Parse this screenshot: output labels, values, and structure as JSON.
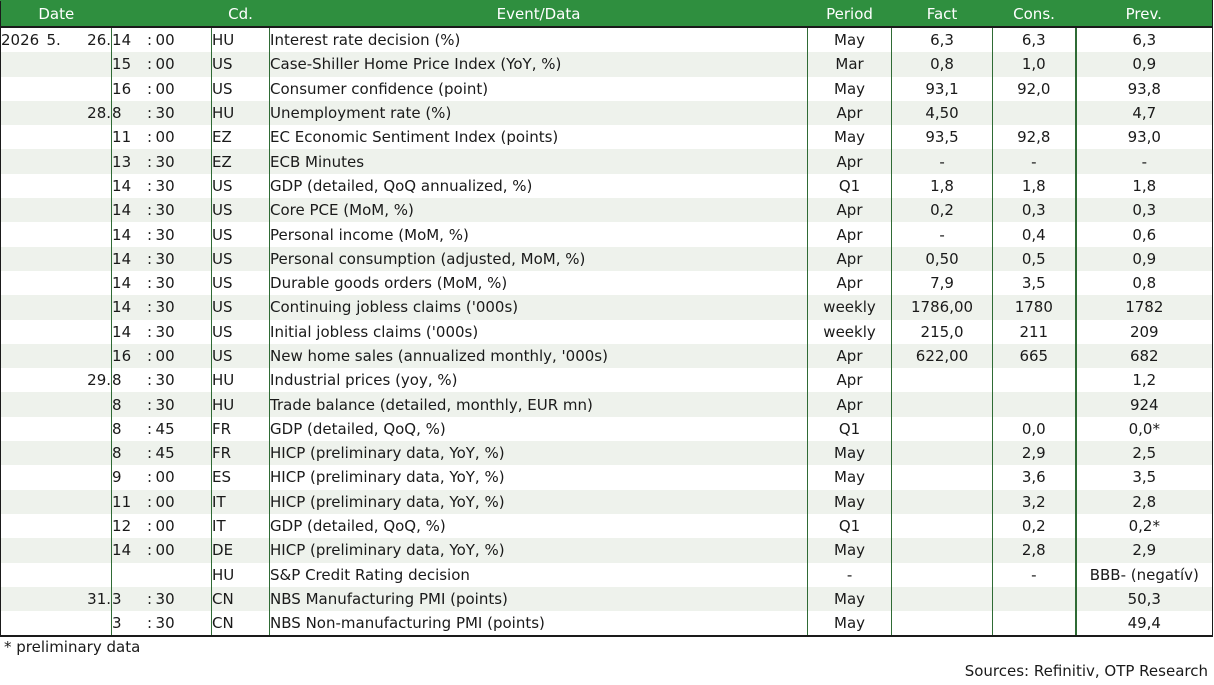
{
  "columns": {
    "date": "Date",
    "code": "Cd.",
    "event": "Event/Data",
    "period": "Period",
    "fact": "Fact",
    "cons": "Cons.",
    "prev": "Prev."
  },
  "rows": [
    {
      "year": "2026",
      "month": "5.",
      "day": "26.",
      "hh": "14",
      "mm": "00",
      "code": "HU",
      "event": "Interest rate decision (%)",
      "period": "May",
      "fact": "6,3",
      "cons": "6,3",
      "prev": "6,3"
    },
    {
      "year": "",
      "month": "",
      "day": "",
      "hh": "15",
      "mm": "00",
      "code": "US",
      "event": "Case-Shiller Home Price Index (YoY, %)",
      "period": "Mar",
      "fact": "0,8",
      "cons": "1,0",
      "prev": "0,9"
    },
    {
      "year": "",
      "month": "",
      "day": "",
      "hh": "16",
      "mm": "00",
      "code": "US",
      "event": "Consumer confidence (point)",
      "period": "May",
      "fact": "93,1",
      "cons": "92,0",
      "prev": "93,8"
    },
    {
      "year": "",
      "month": "",
      "day": "28.",
      "hh": "8",
      "mm": "30",
      "code": "HU",
      "event": "Unemployment rate (%)",
      "period": "Apr",
      "fact": "4,50",
      "cons": "",
      "prev": "4,7"
    },
    {
      "year": "",
      "month": "",
      "day": "",
      "hh": "11",
      "mm": "00",
      "code": "EZ",
      "event": "EC Economic Sentiment Index (points)",
      "period": "May",
      "fact": "93,5",
      "cons": "92,8",
      "prev": "93,0"
    },
    {
      "year": "",
      "month": "",
      "day": "",
      "hh": "13",
      "mm": "30",
      "code": "EZ",
      "event": "ECB Minutes",
      "period": "Apr",
      "fact": "-",
      "cons": "-",
      "prev": "-"
    },
    {
      "year": "",
      "month": "",
      "day": "",
      "hh": "14",
      "mm": "30",
      "code": "US",
      "event": "GDP (detailed, QoQ annualized, %)",
      "period": "Q1",
      "fact": "1,8",
      "cons": "1,8",
      "prev": "1,8"
    },
    {
      "year": "",
      "month": "",
      "day": "",
      "hh": "14",
      "mm": "30",
      "code": "US",
      "event": "Core PCE (MoM, %)",
      "period": "Apr",
      "fact": "0,2",
      "cons": "0,3",
      "prev": "0,3"
    },
    {
      "year": "",
      "month": "",
      "day": "",
      "hh": "14",
      "mm": "30",
      "code": "US",
      "event": "Personal income (MoM, %)",
      "period": "Apr",
      "fact": "-",
      "cons": "0,4",
      "prev": "0,6"
    },
    {
      "year": "",
      "month": "",
      "day": "",
      "hh": "14",
      "mm": "30",
      "code": "US",
      "event": "Personal consumption (adjusted, MoM, %)",
      "period": "Apr",
      "fact": "0,50",
      "cons": "0,5",
      "prev": "0,9"
    },
    {
      "year": "",
      "month": "",
      "day": "",
      "hh": "14",
      "mm": "30",
      "code": "US",
      "event": "Durable goods orders (MoM, %)",
      "period": "Apr",
      "fact": "7,9",
      "cons": "3,5",
      "prev": "0,8"
    },
    {
      "year": "",
      "month": "",
      "day": "",
      "hh": "14",
      "mm": "30",
      "code": "US",
      "event": "Continuing jobless claims ('000s)",
      "period": "weekly",
      "fact": "1786,00",
      "cons": "1780",
      "prev": "1782"
    },
    {
      "year": "",
      "month": "",
      "day": "",
      "hh": "14",
      "mm": "30",
      "code": "US",
      "event": "Initial jobless claims ('000s)",
      "period": "weekly",
      "fact": "215,0",
      "cons": "211",
      "prev": "209"
    },
    {
      "year": "",
      "month": "",
      "day": "",
      "hh": "16",
      "mm": "00",
      "code": "US",
      "event": "New home sales (annualized monthly, '000s)",
      "period": "Apr",
      "fact": "622,00",
      "cons": "665",
      "prev": "682"
    },
    {
      "year": "",
      "month": "",
      "day": "29.",
      "hh": "8",
      "mm": "30",
      "code": "HU",
      "event": "Industrial prices (yoy, %)",
      "period": "Apr",
      "fact": "",
      "cons": "",
      "prev": "1,2"
    },
    {
      "year": "",
      "month": "",
      "day": "",
      "hh": "8",
      "mm": "30",
      "code": "HU",
      "event": "Trade balance (detailed, monthly, EUR mn)",
      "period": "Apr",
      "fact": "",
      "cons": "",
      "prev": "924"
    },
    {
      "year": "",
      "month": "",
      "day": "",
      "hh": "8",
      "mm": "45",
      "code": "FR",
      "event": "GDP (detailed, QoQ, %)",
      "period": "Q1",
      "fact": "",
      "cons": "0,0",
      "prev": "0,0*"
    },
    {
      "year": "",
      "month": "",
      "day": "",
      "hh": "8",
      "mm": "45",
      "code": "FR",
      "event": "HICP (preliminary data, YoY, %)",
      "period": "May",
      "fact": "",
      "cons": "2,9",
      "prev": "2,5"
    },
    {
      "year": "",
      "month": "",
      "day": "",
      "hh": "9",
      "mm": "00",
      "code": "ES",
      "event": "HICP (preliminary data, YoY, %)",
      "period": "May",
      "fact": "",
      "cons": "3,6",
      "prev": "3,5"
    },
    {
      "year": "",
      "month": "",
      "day": "",
      "hh": "11",
      "mm": "00",
      "code": "IT",
      "event": "HICP (preliminary data, YoY, %)",
      "period": "May",
      "fact": "",
      "cons": "3,2",
      "prev": "2,8"
    },
    {
      "year": "",
      "month": "",
      "day": "",
      "hh": "12",
      "mm": "00",
      "code": "IT",
      "event": "GDP (detailed, QoQ, %)",
      "period": "Q1",
      "fact": "",
      "cons": "0,2",
      "prev": "0,2*"
    },
    {
      "year": "",
      "month": "",
      "day": "",
      "hh": "14",
      "mm": "00",
      "code": "DE",
      "event": "HICP (preliminary data, YoY, %)",
      "period": "May",
      "fact": "",
      "cons": "2,8",
      "prev": "2,9"
    },
    {
      "year": "",
      "month": "",
      "day": "",
      "hh": "",
      "mm": "",
      "code": "HU",
      "event": "S&P Credit Rating decision",
      "period": "-",
      "fact": "",
      "cons": "-",
      "prev": "BBB- (negatív)"
    },
    {
      "year": "",
      "month": "",
      "day": "31.",
      "hh": "3",
      "mm": "30",
      "code": "CN",
      "event": "NBS Manufacturing PMI (points)",
      "period": "May",
      "fact": "",
      "cons": "",
      "prev": "50,3"
    },
    {
      "year": "",
      "month": "",
      "day": "",
      "hh": "3",
      "mm": "30",
      "code": "CN",
      "event": "NBS Non-manufacturing PMI (points)",
      "period": "May",
      "fact": "",
      "cons": "",
      "prev": "49,4"
    }
  ],
  "footnote": "* preliminary data",
  "sources": "Sources: Refinitiv, OTP Research",
  "colors": {
    "header_bg": "#2f8f3f",
    "stripe": "#eef2ec",
    "rule": "#2f6b35"
  }
}
